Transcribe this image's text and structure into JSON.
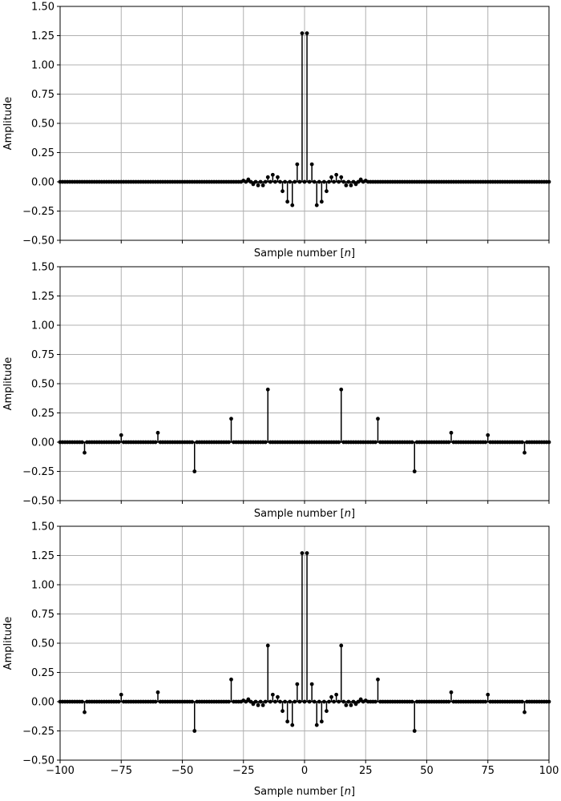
{
  "chart_data": [
    {
      "type": "stem",
      "ylabel": "Amplitude",
      "xlabel": "Sample number [n]",
      "xlim": [
        -100,
        100
      ],
      "ylim": [
        -0.5,
        1.5
      ],
      "xticks": [
        -100,
        -75,
        -50,
        -25,
        0,
        25,
        50,
        75,
        100
      ],
      "yticks": [
        -0.5,
        -0.25,
        0.0,
        0.25,
        0.5,
        0.75,
        1.0,
        1.25,
        1.5
      ],
      "ytick_labels": [
        "−0.50",
        "−0.25",
        "0.00",
        "0.25",
        "0.50",
        "0.75",
        "1.00",
        "1.25",
        "1.50"
      ],
      "show_xtick_labels": false,
      "grid": true,
      "series": [
        {
          "n_range": [
            -100,
            100
          ],
          "values": {
            "-1": 1.27,
            "1": 1.27,
            "-3": 0.15,
            "3": 0.15,
            "-5": -0.2,
            "5": -0.2,
            "-7": -0.17,
            "7": -0.17,
            "-9": -0.08,
            "9": -0.08,
            "-11": 0.04,
            "11": 0.04,
            "-13": 0.06,
            "13": 0.06,
            "-15": 0.04,
            "15": 0.04,
            "-17": -0.03,
            "17": -0.03,
            "-19": -0.03,
            "19": -0.03,
            "-21": -0.02,
            "21": -0.02,
            "-23": 0.02,
            "23": 0.02,
            "-25": 0.01,
            "25": 0.01
          }
        }
      ]
    },
    {
      "type": "stem",
      "ylabel": "Amplitude",
      "xlabel": "Sample number [n]",
      "xlim": [
        -100,
        100
      ],
      "ylim": [
        -0.5,
        1.5
      ],
      "xticks": [
        -100,
        -75,
        -50,
        -25,
        0,
        25,
        50,
        75,
        100
      ],
      "yticks": [
        -0.5,
        -0.25,
        0.0,
        0.25,
        0.5,
        0.75,
        1.0,
        1.25,
        1.5
      ],
      "ytick_labels": [
        "−0.50",
        "−0.25",
        "0.00",
        "0.25",
        "0.50",
        "0.75",
        "1.00",
        "1.25",
        "1.50"
      ],
      "show_xtick_labels": false,
      "grid": true,
      "series": [
        {
          "n_range": [
            -100,
            100
          ],
          "values": {
            "-90": -0.09,
            "90": -0.09,
            "-75": 0.06,
            "75": 0.06,
            "-60": 0.08,
            "60": 0.08,
            "-45": -0.25,
            "45": -0.25,
            "-30": 0.2,
            "30": 0.2,
            "-15": 0.45,
            "15": 0.45
          }
        }
      ]
    },
    {
      "type": "stem",
      "ylabel": "Amplitude",
      "xlabel": "Sample number [n]",
      "xlim": [
        -100,
        100
      ],
      "ylim": [
        -0.5,
        1.5
      ],
      "xticks": [
        -100,
        -75,
        -50,
        -25,
        0,
        25,
        50,
        75,
        100
      ],
      "xtick_labels": [
        "−100",
        "−75",
        "−50",
        "−25",
        "0",
        "25",
        "50",
        "75",
        "100"
      ],
      "yticks": [
        -0.5,
        -0.25,
        0.0,
        0.25,
        0.5,
        0.75,
        1.0,
        1.25,
        1.5
      ],
      "ytick_labels": [
        "−0.50",
        "−0.25",
        "0.00",
        "0.25",
        "0.50",
        "0.75",
        "1.00",
        "1.25",
        "1.50"
      ],
      "show_xtick_labels": true,
      "grid": true,
      "series": [
        {
          "n_range": [
            -100,
            100
          ],
          "values": {
            "-1": 1.27,
            "1": 1.27,
            "-3": 0.15,
            "3": 0.15,
            "-5": -0.2,
            "5": -0.2,
            "-7": -0.17,
            "7": -0.17,
            "-9": -0.08,
            "9": -0.08,
            "-11": 0.04,
            "11": 0.04,
            "-13": 0.06,
            "13": 0.06,
            "-15": 0.48,
            "15": 0.48,
            "-17": -0.03,
            "17": -0.03,
            "-19": -0.03,
            "19": -0.03,
            "-21": -0.02,
            "21": -0.02,
            "-23": 0.02,
            "23": 0.02,
            "-25": 0.01,
            "25": 0.01,
            "-30": 0.19,
            "30": 0.19,
            "-45": -0.25,
            "45": -0.25,
            "-60": 0.08,
            "60": 0.08,
            "-75": 0.06,
            "75": 0.06,
            "-90": -0.09,
            "90": -0.09
          }
        }
      ]
    }
  ]
}
